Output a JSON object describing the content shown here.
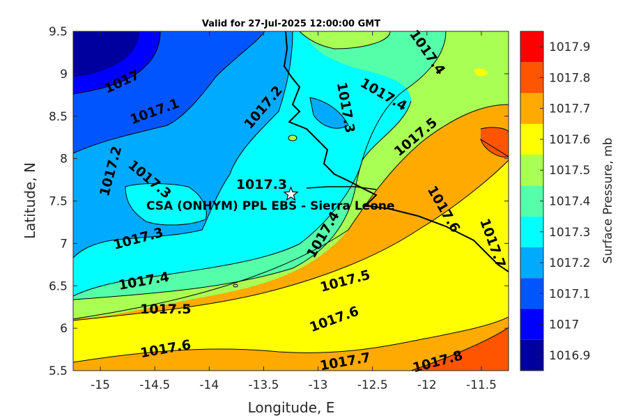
{
  "title": "Valid for 27-Jul-2025 12:00:00 GMT",
  "x_axis": {
    "label": "Longitude, E",
    "range": [
      -15.25,
      -11.25
    ],
    "ticks": [
      -15,
      -14.5,
      -14,
      -13.5,
      -13,
      -12.5,
      -12,
      -11.5
    ],
    "tick_labels": [
      "-15",
      "-14.5",
      "-14",
      "-13.5",
      "-13",
      "-12.5",
      "-12",
      "-11.5"
    ]
  },
  "y_axis": {
    "label": "Latitude, N",
    "range": [
      5.5,
      9.5
    ],
    "ticks": [
      5.5,
      6,
      6.5,
      7,
      7.5,
      8,
      8.5,
      9,
      9.5
    ],
    "tick_labels": [
      "5.5",
      "6",
      "6.5",
      "7",
      "7.5",
      "8",
      "8.5",
      "9",
      "9.5"
    ]
  },
  "colorbar": {
    "label": "Surface Pressure, mb",
    "levels": [
      "1016.9",
      "1017",
      "1017.1",
      "1017.2",
      "1017.3",
      "1017.4",
      "1017.5",
      "1017.6",
      "1017.7",
      "1017.8",
      "1017.9"
    ],
    "colors": [
      "#00009f",
      "#0000ff",
      "#0055ff",
      "#00aaff",
      "#00ffff",
      "#55ffaa",
      "#aaff55",
      "#ffff00",
      "#ffaa00",
      "#ff5500",
      "#ff0000"
    ]
  },
  "site": {
    "name": "CSA (ONHYM) PPL EBS  - Sierra Leone",
    "lon": -13.25,
    "lat": 7.58,
    "value_label": "1017.3"
  },
  "contour_labels": [
    {
      "text": "1017",
      "lon": -14.8,
      "lat": 8.9,
      "angle": -25
    },
    {
      "text": "1017.1",
      "lon": -14.5,
      "lat": 8.55,
      "angle": -20
    },
    {
      "text": "1017.2",
      "lon": -14.9,
      "lat": 7.85,
      "angle": -75
    },
    {
      "text": "1017.3",
      "lon": -14.55,
      "lat": 7.75,
      "angle": 40
    },
    {
      "text": "1017.3",
      "lon": -14.65,
      "lat": 7.05,
      "angle": -15
    },
    {
      "text": "1017.2",
      "lon": -13.5,
      "lat": 8.6,
      "angle": -50
    },
    {
      "text": "1017.3",
      "lon": -12.75,
      "lat": 8.6,
      "angle": 80
    },
    {
      "text": "1017.4",
      "lon": -12.4,
      "lat": 8.75,
      "angle": 30
    },
    {
      "text": "1017.4",
      "lon": -12.0,
      "lat": 9.25,
      "angle": 55
    },
    {
      "text": "1017.5",
      "lon": -12.1,
      "lat": 8.25,
      "angle": -40
    },
    {
      "text": "1017.4",
      "lon": -12.95,
      "lat": 7.1,
      "angle": -60
    },
    {
      "text": "1017.6",
      "lon": -11.85,
      "lat": 7.4,
      "angle": 60
    },
    {
      "text": "1017.7",
      "lon": -11.4,
      "lat": 7.0,
      "angle": 70
    },
    {
      "text": "1017.4",
      "lon": -14.6,
      "lat": 6.55,
      "angle": -10
    },
    {
      "text": "1017.5",
      "lon": -12.75,
      "lat": 6.55,
      "angle": -15
    },
    {
      "text": "1017.5",
      "lon": -14.4,
      "lat": 6.22,
      "angle": 0
    },
    {
      "text": "1017.6",
      "lon": -12.85,
      "lat": 6.1,
      "angle": -20
    },
    {
      "text": "1017.6",
      "lon": -14.4,
      "lat": 5.75,
      "angle": -10
    },
    {
      "text": "1017.7",
      "lon": -12.75,
      "lat": 5.6,
      "angle": -10
    },
    {
      "text": "1017.8",
      "lon": -11.9,
      "lat": 5.6,
      "angle": -15
    }
  ]
}
